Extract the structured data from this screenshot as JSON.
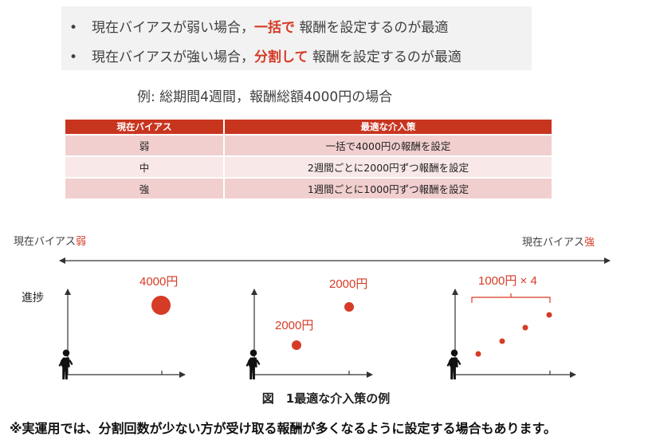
{
  "bullets": [
    {
      "pre": "現在バイアスが弱い場合，",
      "highlight": "一括で",
      "post": " 報酬を設定するのが最適"
    },
    {
      "pre": "現在バイアスが強い場合，",
      "highlight": "分割して",
      "post": " 報酬を設定するのが最適"
    }
  ],
  "example_title": "例: 総期間4週間，報酬総額4000円の場合",
  "table": {
    "headers": [
      "現在バイアス",
      "最適な介入策"
    ],
    "rows": [
      [
        "弱",
        "一括で4000円の報酬を設定"
      ],
      [
        "中",
        "2週間ごとに2000円ずつ報酬を設定"
      ],
      [
        "強",
        "1週間ごとに1000円ずつ報酬を設定"
      ]
    ]
  },
  "axis": {
    "left_prefix": "現在バイアス",
    "left_emph": "弱",
    "right_prefix": "現在バイアス",
    "right_emph": "強"
  },
  "ylabel": "進捗",
  "panels": {
    "weak_label": "4000円",
    "mid_label_top": "2000円",
    "mid_label_bottom": "2000円",
    "strong_label": "1000円 × 4"
  },
  "caption": "図　1最適な介入策の例",
  "note": "※実運用では、分割回数が少ない方が受け取る報酬が多くなるように設定する場合もあります。",
  "colors": {
    "accent": "#d63b26",
    "header": "#c8351f",
    "row_dark": "#f2cfcf",
    "row_light": "#f9e8e8"
  },
  "icons": [
    "person-icon"
  ]
}
